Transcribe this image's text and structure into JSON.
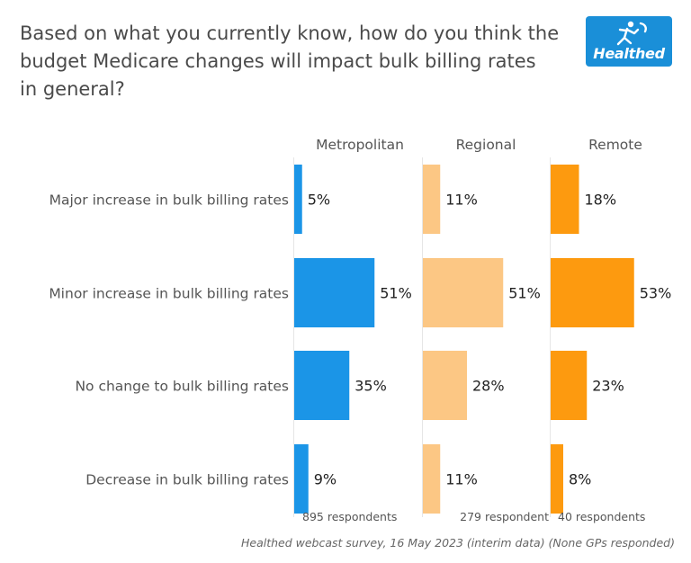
{
  "title_lines": [
    "Based on what you currently know, how do you think the",
    "budget Medicare changes will impact bulk billing rates",
    "in general?"
  ],
  "logo": {
    "text": "Healthed",
    "color": "#1a8fd8"
  },
  "chart_data": {
    "type": "bar",
    "orientation": "horizontal",
    "title": "Based on what you currently know, how do you think the budget Medicare changes will impact bulk billing rates in general?",
    "categories": [
      "Major increase in bulk billing rates",
      "Minor increase in bulk billing rates",
      "No change to bulk billing rates",
      "Decrease in bulk billing rates"
    ],
    "series": [
      {
        "name": "Metropolitan",
        "values": [
          5,
          51,
          35,
          9
        ],
        "color": "#1b95e7",
        "respondents": "895 respondents"
      },
      {
        "name": "Regional",
        "values": [
          11,
          51,
          28,
          11
        ],
        "color": "#fcc784",
        "respondents": "279 respondent"
      },
      {
        "name": "Remote",
        "values": [
          18,
          53,
          23,
          8
        ],
        "color": "#fd9a0f",
        "respondents": "40 respondents"
      }
    ],
    "value_suffix": "%",
    "xlim": [
      0,
      100
    ],
    "grid": false,
    "legend": "panel-headers"
  },
  "footer": "Healthed webcast survey, 16 May 2023 (interim data) (None GPs responded)"
}
